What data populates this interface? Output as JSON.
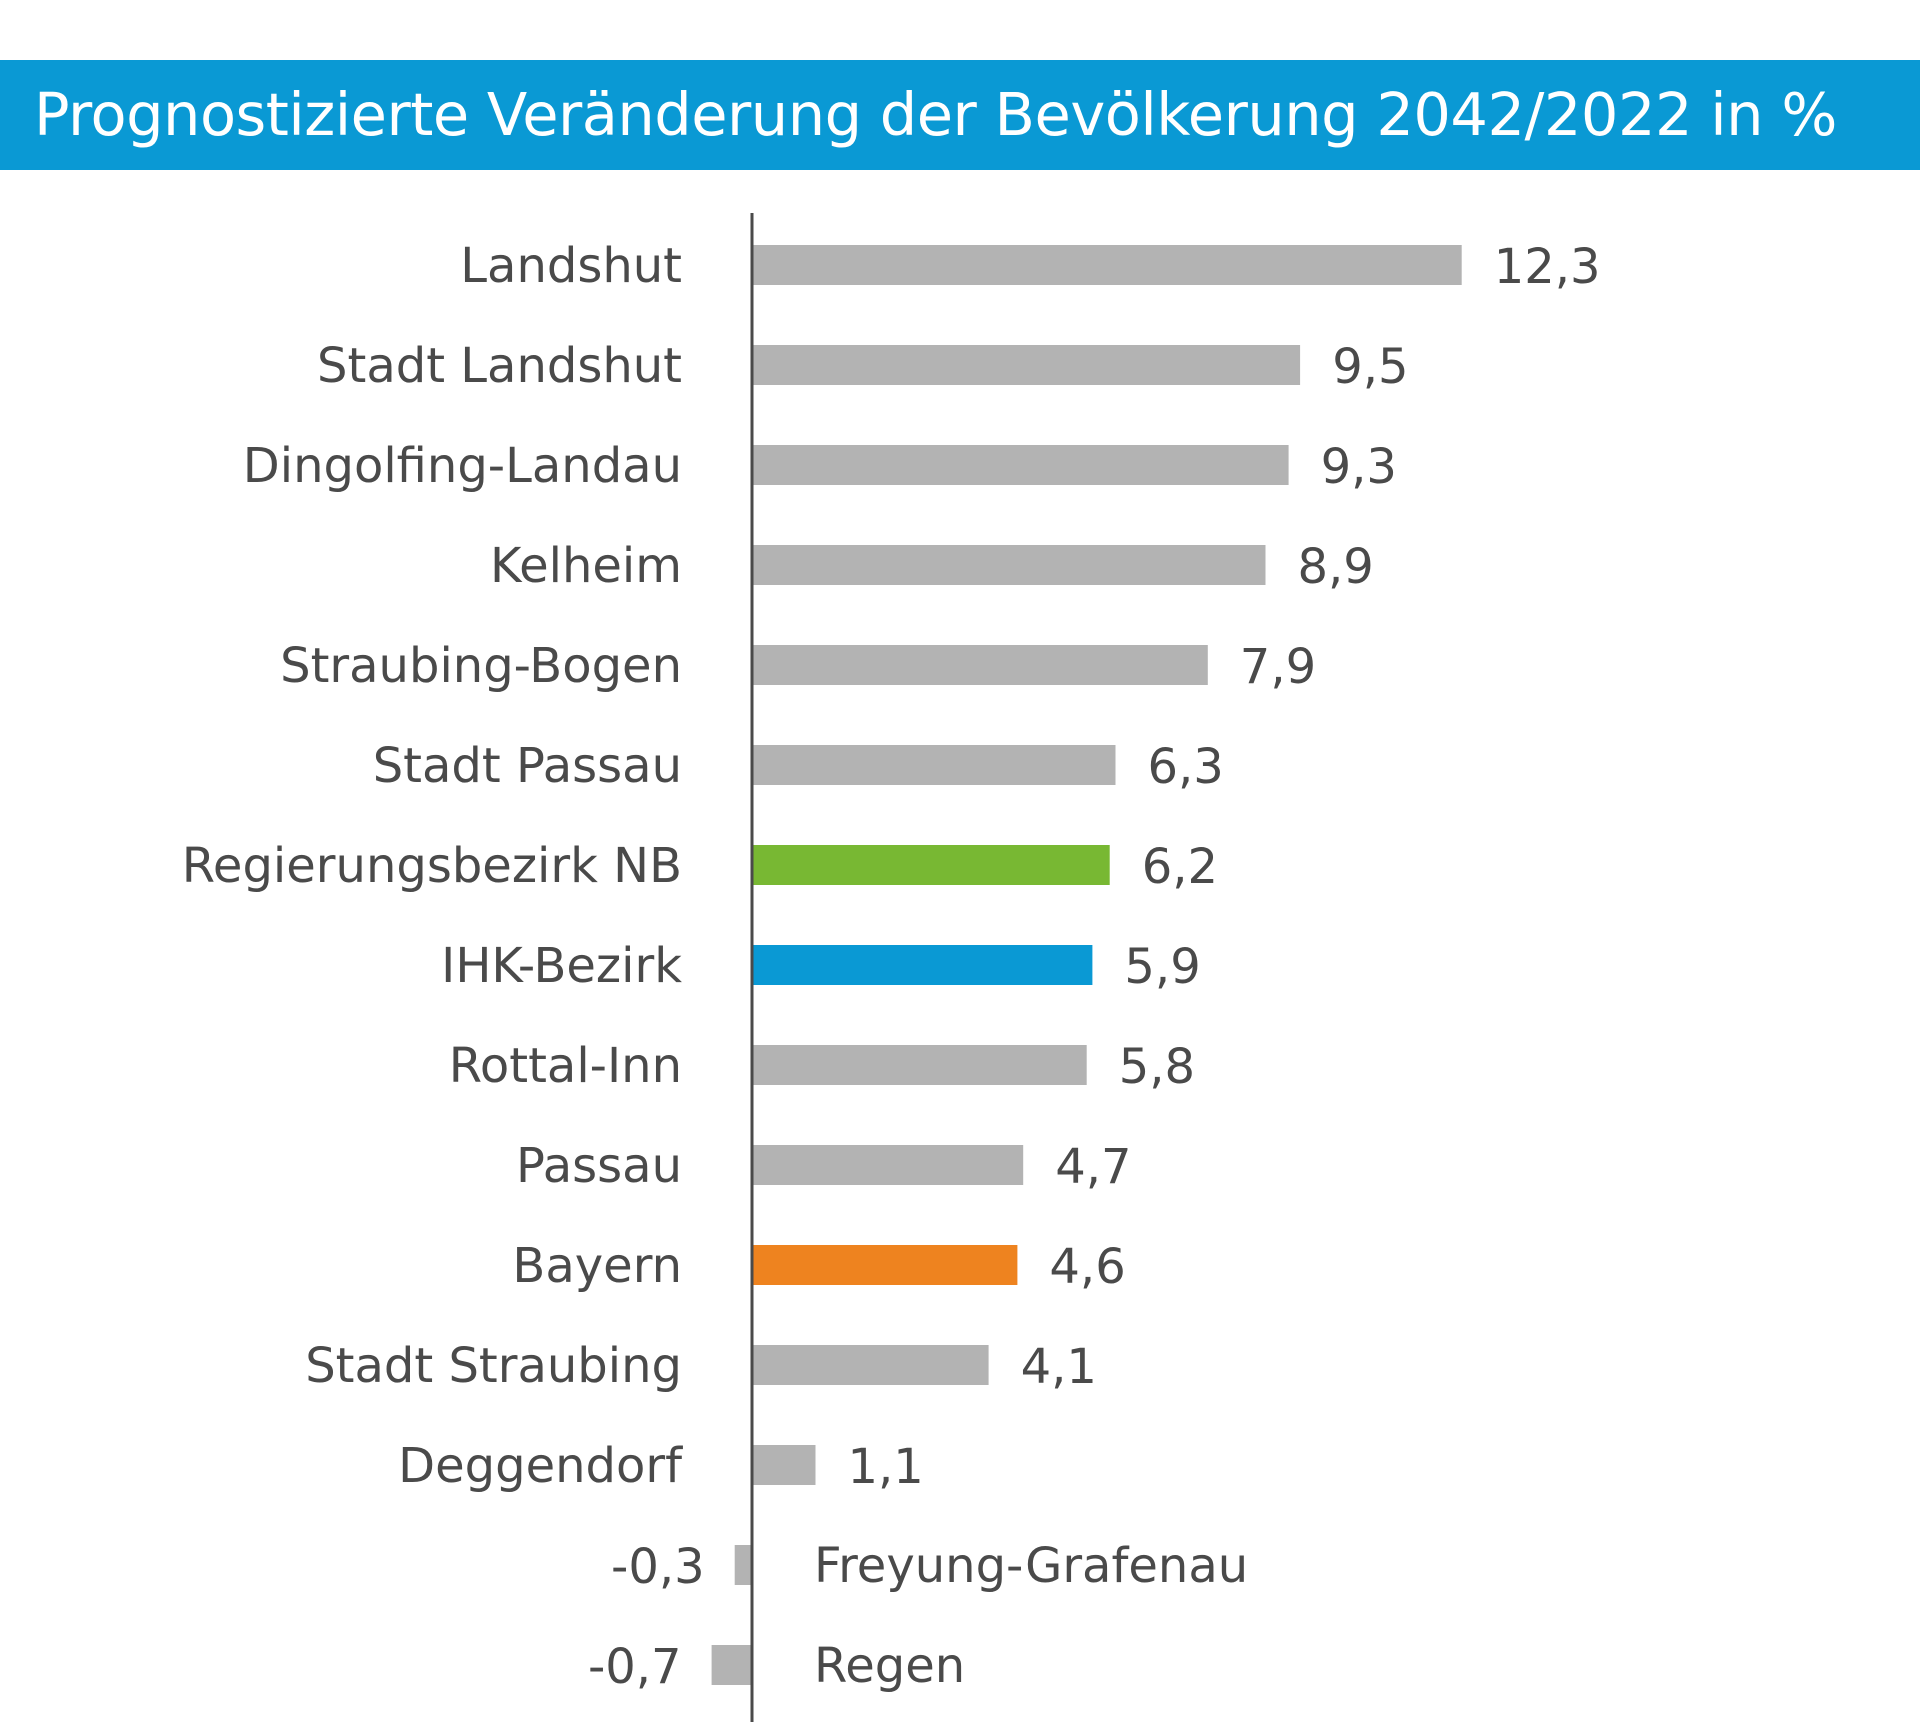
{
  "chart_data": {
    "type": "bar",
    "orientation": "horizontal",
    "title": "Prognostizierte Veränderung der Bevölkerung 2042/2022 in %",
    "categories": [
      "Landshut",
      "Stadt Landshut",
      "Dingolfing-Landau",
      "Kelheim",
      "Straubing-Bogen",
      "Stadt Passau",
      "Regierungsbezirk NB",
      "IHK-Bezirk",
      "Rottal-Inn",
      "Passau",
      "Bayern",
      "Stadt Straubing",
      "Deggendorf",
      "Freyung-Grafenau",
      "Regen"
    ],
    "values": [
      12.3,
      9.5,
      9.3,
      8.9,
      7.9,
      6.3,
      6.2,
      5.9,
      5.8,
      4.7,
      4.6,
      4.1,
      1.1,
      -0.3,
      -0.7
    ],
    "value_labels": [
      "12,3",
      "9,5",
      "9,3",
      "8,9",
      "7,9",
      "6,3",
      "6,2",
      "5,9",
      "5,8",
      "4,7",
      "4,6",
      "4,1",
      "1,1",
      "-0,3",
      "-0,7"
    ],
    "colors": [
      "#b3b3b3",
      "#b3b3b3",
      "#b3b3b3",
      "#b3b3b3",
      "#b3b3b3",
      "#b3b3b3",
      "#78b833",
      "#0a99d4",
      "#b3b3b3",
      "#b3b3b3",
      "#ee831f",
      "#b3b3b3",
      "#b3b3b3",
      "#b3b3b3",
      "#b3b3b3"
    ],
    "xlim": [
      -0.7,
      12.3
    ],
    "grid": false,
    "legend": "none"
  },
  "colors": {
    "title_bar": "#0a99d4",
    "default_bar": "#b3b3b3",
    "axis": "#4a4a4a",
    "text": "#4a4a4a"
  }
}
